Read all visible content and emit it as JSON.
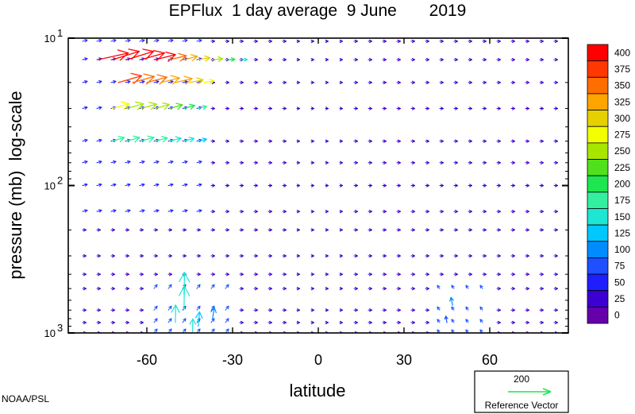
{
  "chart_data": {
    "type": "vector",
    "title": "EPFlux  1 day average  9 June       2019",
    "xlabel": "latitude",
    "ylabel": "pressure (mb)  log-scale",
    "xlim": [
      -87.5,
      87.5
    ],
    "ylim": [
      1000,
      10
    ],
    "yscale": "log",
    "x_ticks": [
      -60,
      -30,
      0,
      30,
      60
    ],
    "x_tick_labels": [
      "-60",
      "-30",
      "0",
      "30",
      "60"
    ],
    "y_ticks": [
      {
        "value": 10,
        "base": "10",
        "exp": "1"
      },
      {
        "value": 100,
        "base": "10",
        "exp": "2"
      },
      {
        "value": 1000,
        "base": "10",
        "exp": "3"
      }
    ],
    "colorbar": {
      "labels": [
        "400",
        "375",
        "350",
        "325",
        "300",
        "275",
        "250",
        "225",
        "200",
        "175",
        "150",
        "125",
        "100",
        "75",
        "50",
        "25",
        "0"
      ],
      "colors": [
        "#ff0000",
        "#ff3700",
        "#ff6e00",
        "#ffa500",
        "#e6d000",
        "#f2ff00",
        "#a8e600",
        "#50e01e",
        "#1ee650",
        "#32f0a0",
        "#1ee6d2",
        "#00c8ff",
        "#008cff",
        "#1e50ff",
        "#1e1eff",
        "#3c00d2",
        "#6600aa"
      ]
    },
    "source": "NOAA/PSL",
    "reference_vector": {
      "magnitude": "200",
      "label": "Reference Vector"
    },
    "pressure_levels": [
      14,
      20,
      30,
      50,
      70,
      100,
      150,
      200,
      300,
      500,
      700,
      1000
    ],
    "vectors": [
      {
        "lat": -77,
        "p": 14,
        "u": 9,
        "v": 2,
        "m": 420
      },
      {
        "lat": -72,
        "p": 14,
        "u": 8,
        "v": 2.5,
        "m": 430
      },
      {
        "lat": -67,
        "p": 14,
        "u": 8,
        "v": 2.5,
        "m": 420
      },
      {
        "lat": -62,
        "p": 14,
        "u": 7,
        "v": 2,
        "m": 400
      },
      {
        "lat": -57,
        "p": 14,
        "u": 6,
        "v": 1.5,
        "m": 390
      },
      {
        "lat": -52,
        "p": 14,
        "u": 5,
        "v": 1.2,
        "m": 360
      },
      {
        "lat": -47,
        "p": 14,
        "u": 4,
        "v": 1,
        "m": 320
      },
      {
        "lat": -42,
        "p": 14,
        "u": 3.5,
        "v": 0.6,
        "m": 290
      },
      {
        "lat": -37,
        "p": 14,
        "u": 3,
        "v": 0.3,
        "m": 240
      },
      {
        "lat": -32,
        "p": 14,
        "u": 2.4,
        "v": 0.1,
        "m": 190
      },
      {
        "lat": -27,
        "p": 14,
        "u": 1.8,
        "v": 0,
        "m": 140
      },
      {
        "lat": -70,
        "p": 20,
        "u": 7,
        "v": 2,
        "m": 380
      },
      {
        "lat": -65,
        "p": 20,
        "u": 6.5,
        "v": 1.8,
        "m": 360
      },
      {
        "lat": -60,
        "p": 20,
        "u": 6,
        "v": 1.6,
        "m": 340
      },
      {
        "lat": -55,
        "p": 20,
        "u": 5.5,
        "v": 1.4,
        "m": 330
      },
      {
        "lat": -50,
        "p": 20,
        "u": 5,
        "v": 1.2,
        "m": 320
      },
      {
        "lat": -45,
        "p": 20,
        "u": 4,
        "v": 0.8,
        "m": 300
      },
      {
        "lat": -40,
        "p": 20,
        "u": 3,
        "v": 0.5,
        "m": 280
      },
      {
        "lat": -72,
        "p": 30,
        "u": 5,
        "v": 1.4,
        "m": 270
      },
      {
        "lat": -67,
        "p": 30,
        "u": 5,
        "v": 1.4,
        "m": 260
      },
      {
        "lat": -62,
        "p": 30,
        "u": 4.6,
        "v": 1.3,
        "m": 250
      },
      {
        "lat": -57,
        "p": 30,
        "u": 4.2,
        "v": 1.2,
        "m": 240
      },
      {
        "lat": -52,
        "p": 30,
        "u": 3.8,
        "v": 1.1,
        "m": 230
      },
      {
        "lat": -47,
        "p": 30,
        "u": 3.2,
        "v": 0.9,
        "m": 210
      },
      {
        "lat": -42,
        "p": 30,
        "u": 2.5,
        "v": 0.6,
        "m": 180
      },
      {
        "lat": -72,
        "p": 50,
        "u": 3.5,
        "v": 1.1,
        "m": 170
      },
      {
        "lat": -67,
        "p": 50,
        "u": 3.8,
        "v": 1.1,
        "m": 175
      },
      {
        "lat": -62,
        "p": 50,
        "u": 3.8,
        "v": 1.1,
        "m": 175
      },
      {
        "lat": -57,
        "p": 50,
        "u": 3.6,
        "v": 1,
        "m": 170
      },
      {
        "lat": -52,
        "p": 50,
        "u": 3.4,
        "v": 0.9,
        "m": 160
      },
      {
        "lat": -47,
        "p": 50,
        "u": 3,
        "v": 0.8,
        "m": 150
      },
      {
        "lat": -42,
        "p": 50,
        "u": 2.5,
        "v": 0.6,
        "m": 130
      }
    ]
  }
}
